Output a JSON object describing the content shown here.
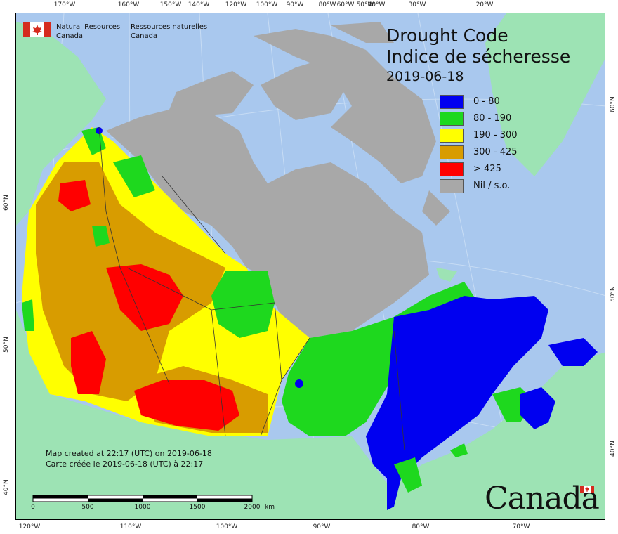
{
  "title_en": "Drought Code",
  "title_fr": "Indice de sécheresse",
  "date": "2019-06-18",
  "legend": [
    {
      "label": "0 - 80",
      "color": "#0000f0"
    },
    {
      "label": "80 - 190",
      "color": "#1ed81e"
    },
    {
      "label": "190 - 300",
      "color": "#ffff00"
    },
    {
      "label": "300 - 425",
      "color": "#d89c00"
    },
    {
      "label": "> 425",
      "color": "#ff0000"
    },
    {
      "label": "Nil / s.o.",
      "color": "#a8a8a8"
    }
  ],
  "agency": {
    "en_line1": "Natural Resources",
    "en_line2": "Canada",
    "fr_line1": "Ressources naturelles",
    "fr_line2": "Canada"
  },
  "created": {
    "en": "Map created at 22:17 (UTC) on 2019-06-18",
    "fr": "Carte créée le 2019-06-18 (UTC) à 22:17"
  },
  "scale": {
    "labels": [
      "0",
      "500",
      "1000",
      "1500",
      "2000"
    ],
    "unit": "km"
  },
  "wordmark": "Canada",
  "graticule": {
    "top": [
      "170°W",
      "160°W",
      "150°W",
      "140°W",
      "120°W",
      "100°W",
      "90°W",
      "80°W",
      "60°W",
      "50°W",
      "40°W",
      "30°W",
      "20°W"
    ],
    "bottom": [
      "120°W",
      "110°W",
      "100°W",
      "90°W",
      "80°W",
      "70°W"
    ],
    "left": [
      "60°N",
      "50°N",
      "40°N"
    ],
    "right": [
      "60°N",
      "50°N",
      "40°N"
    ]
  },
  "colors": {
    "ocean": "#a9c8ee",
    "land_other": "#9de3b4",
    "nil": "#a8a8a8"
  }
}
